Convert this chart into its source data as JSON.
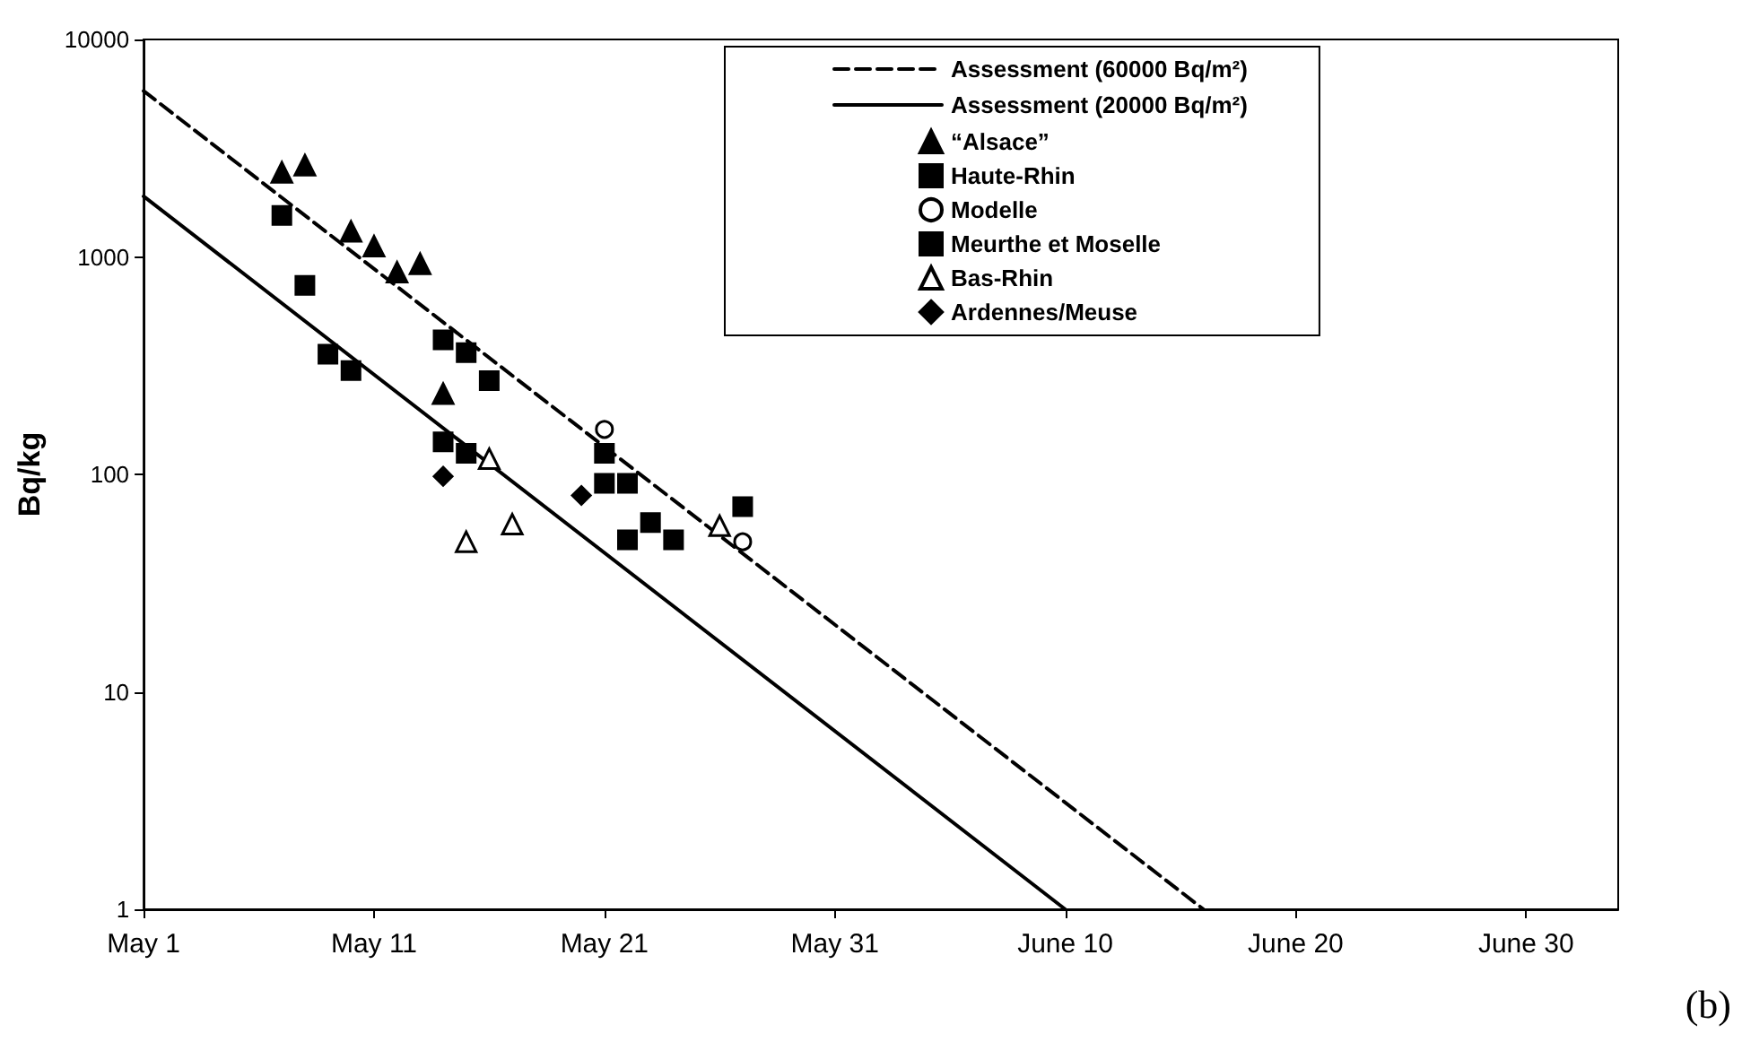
{
  "chart_data": {
    "type": "scatter",
    "ylabel": "Bq/kg",
    "log": "y",
    "grid": false,
    "legend": "top right",
    "ylim": [
      1,
      10000
    ],
    "yticks": [
      1,
      10,
      100,
      1000,
      10000
    ],
    "xlim": [
      "--05-01",
      "--07-04"
    ],
    "xticks": [
      {
        "value": "--05-01",
        "label": "May 1"
      },
      {
        "value": "--05-11",
        "label": "May 11"
      },
      {
        "value": "--05-21",
        "label": "May 21"
      },
      {
        "value": "--05-31",
        "label": "May 31"
      },
      {
        "value": "--06-10",
        "label": "June 10"
      },
      {
        "value": "--06-20",
        "label": "June 20"
      },
      {
        "value": "--06-30",
        "label": "June 30"
      }
    ],
    "annotations": [
      "(b)"
    ],
    "series": [
      {
        "name": "Assessment (60000 Bq/m²)",
        "type": "line",
        "line_style": "dashed",
        "marker": "none",
        "color": "#000000",
        "x": [
          "--05-01",
          "--06-16"
        ],
        "values": [
          5800,
          1
        ]
      },
      {
        "name": "Assessment (20000 Bq/m²)",
        "type": "line",
        "line_style": "solid",
        "marker": "none",
        "color": "#000000",
        "x": [
          "--05-01",
          "--06-10"
        ],
        "values": [
          1900,
          1
        ]
      },
      {
        "name": "“Alsace”",
        "marker": "triangle",
        "color": "#000000",
        "x": [
          "--05-07",
          "--05-08",
          "--05-10",
          "--05-11",
          "--05-12",
          "--05-13",
          "--05-14"
        ],
        "values": [
          2450,
          2640,
          1310,
          1120,
          850,
          930,
          235
        ]
      },
      {
        "name": "Haute-Rhin",
        "marker": "square",
        "color": "#000000",
        "x": [
          "--05-07",
          "--05-08",
          "--05-09",
          "--05-10",
          "--05-14",
          "--05-16",
          "--05-15",
          "--05-21",
          "--05-22",
          "--05-23",
          "--05-24",
          "--05-27"
        ],
        "values": [
          1550,
          740,
          357,
          300,
          415,
          270,
          125,
          125,
          91,
          60,
          50,
          71
        ]
      },
      {
        "name": "Modelle",
        "marker": "circle",
        "color": "#ffffff",
        "x": [
          "--05-21",
          "--05-27"
        ],
        "values": [
          161,
          49
        ]
      },
      {
        "name": "Meurthe et Moselle",
        "marker": "square",
        "color": "#000000",
        "x": [
          "--05-15",
          "--05-14",
          "--05-21",
          "--05-22"
        ],
        "values": [
          363,
          141,
          91,
          50
        ]
      },
      {
        "name": "Bas-Rhin",
        "marker": "triangle",
        "color": "#ffffff",
        "x": [
          "--05-16",
          "--05-15",
          "--05-17",
          "--05-26"
        ],
        "values": [
          118,
          49,
          59,
          58
        ]
      },
      {
        "name": "Ardennes/Meuse",
        "marker": "diamond",
        "color": "#000000",
        "x": [
          "--05-14",
          "--05-20"
        ],
        "values": [
          98,
          80
        ]
      }
    ]
  }
}
